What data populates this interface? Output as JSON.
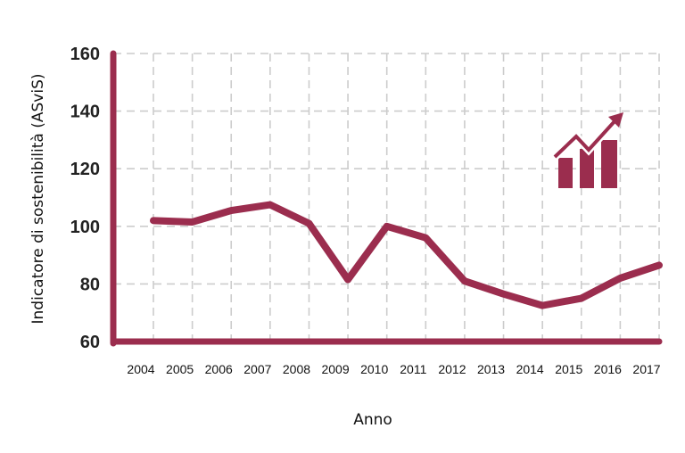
{
  "chart_data": {
    "type": "line",
    "title": "",
    "xlabel": "Anno",
    "ylabel": "Indicatore di sostenibilità (ASviS)",
    "x": [
      "2004",
      "2005",
      "2006",
      "2007",
      "2008",
      "2009",
      "2010",
      "2011",
      "2012",
      "2013",
      "2014",
      "2015",
      "2016",
      "2017"
    ],
    "series": [
      {
        "values": [
          102,
          101.5,
          105.5,
          107.5,
          101,
          81.5,
          100,
          96,
          81,
          76.5,
          72.5,
          75,
          82,
          86.5
        ]
      }
    ],
    "yticks": [
      60,
      80,
      100,
      120,
      140,
      160
    ],
    "ylim": [
      60,
      160
    ],
    "grid": true,
    "legend": "none",
    "colors": {
      "line": "#9b2d4e",
      "axis": "#9b2d4e",
      "grid": "#cccccc"
    },
    "icon": "growth-bar-chart-icon"
  }
}
